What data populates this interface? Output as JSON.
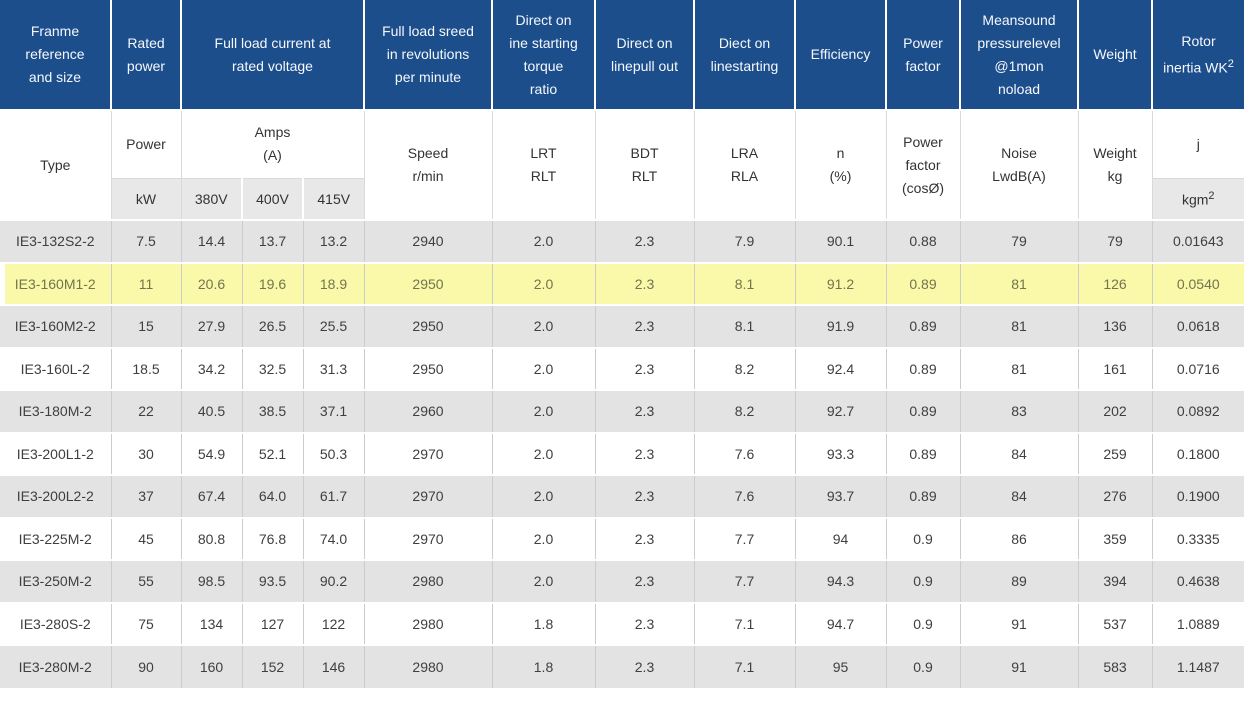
{
  "colors": {
    "header_bg": "#1d4e8c",
    "header_text": "#f5f8fc",
    "row_alt_bg": "#e3e3e3",
    "unit_cell_bg": "#e8e8e8",
    "highlight_bg": "#f9f9a9",
    "highlight_text": "#74744e",
    "body_text": "#3f3f3f",
    "grid_line": "#cccccc"
  },
  "top_header": {
    "frame": "Franme\nreference\nand size",
    "rated_power": "Rated\npower",
    "full_load_current": "Full load current at\nrated voltage",
    "full_load_speed": "Full load sreed\nin revolutions\nper minute",
    "dol_torque": "Direct on\nine starting\ntorque\nratio",
    "dol_pullout": "Direct on\nlinepull out",
    "dol_starting": "Diect on\nlinestarting",
    "efficiency": "Efficiency",
    "power_factor": "Power\nfactor",
    "noise": "Meansound\npressurelevel\n@1mon\nnoload",
    "weight": "Weight",
    "rotor_line1": "Rotor",
    "rotor_line2": "inertia WK",
    "rotor_sup": "2"
  },
  "sub_header": {
    "type": "Type",
    "power": "Power",
    "amps": "Amps\n(A)",
    "kw": "kW",
    "v380": "380V",
    "v400": "400V",
    "v415": "415V",
    "speed": "Speed\nr/min",
    "lrt": "LRT\nRLT",
    "bdt": "BDT\nRLT",
    "lra": "LRA\nRLA",
    "n": "n\n(%)",
    "pf": "Power\nfactor\n(cosØ)",
    "noise": "Noise\nLwdB(A)",
    "weight": "Weight\nkg",
    "j": "j",
    "kgm_text": "kgm",
    "kgm_sup": "2"
  },
  "rows": [
    {
      "type": "IE3-132S2-2",
      "kw": "7.5",
      "a380": "14.4",
      "a400": "13.7",
      "a415": "13.2",
      "speed": "2940",
      "lrt": "2.0",
      "bdt": "2.3",
      "lra": "7.9",
      "eff": "90.1",
      "pf": "0.88",
      "noise": "79",
      "weight": "79",
      "j": "0.01643",
      "highlighted": false
    },
    {
      "type": "IE3-160M1-2",
      "kw": "11",
      "a380": "20.6",
      "a400": "19.6",
      "a415": "18.9",
      "speed": "2950",
      "lrt": "2.0",
      "bdt": "2.3",
      "lra": "8.1",
      "eff": "91.2",
      "pf": "0.89",
      "noise": "81",
      "weight": "126",
      "j": "0.0540",
      "highlighted": true
    },
    {
      "type": "IE3-160M2-2",
      "kw": "15",
      "a380": "27.9",
      "a400": "26.5",
      "a415": "25.5",
      "speed": "2950",
      "lrt": "2.0",
      "bdt": "2.3",
      "lra": "8.1",
      "eff": "91.9",
      "pf": "0.89",
      "noise": "81",
      "weight": "136",
      "j": "0.0618",
      "highlighted": false
    },
    {
      "type": "IE3-160L-2",
      "kw": "18.5",
      "a380": "34.2",
      "a400": "32.5",
      "a415": "31.3",
      "speed": "2950",
      "lrt": "2.0",
      "bdt": "2.3",
      "lra": "8.2",
      "eff": "92.4",
      "pf": "0.89",
      "noise": "81",
      "weight": "161",
      "j": "0.0716",
      "highlighted": false
    },
    {
      "type": "IE3-180M-2",
      "kw": "22",
      "a380": "40.5",
      "a400": "38.5",
      "a415": "37.1",
      "speed": "2960",
      "lrt": "2.0",
      "bdt": "2.3",
      "lra": "8.2",
      "eff": "92.7",
      "pf": "0.89",
      "noise": "83",
      "weight": "202",
      "j": "0.0892",
      "highlighted": false
    },
    {
      "type": "IE3-200L1-2",
      "kw": "30",
      "a380": "54.9",
      "a400": "52.1",
      "a415": "50.3",
      "speed": "2970",
      "lrt": "2.0",
      "bdt": "2.3",
      "lra": "7.6",
      "eff": "93.3",
      "pf": "0.89",
      "noise": "84",
      "weight": "259",
      "j": "0.1800",
      "highlighted": false
    },
    {
      "type": "IE3-200L2-2",
      "kw": "37",
      "a380": "67.4",
      "a400": "64.0",
      "a415": "61.7",
      "speed": "2970",
      "lrt": "2.0",
      "bdt": "2.3",
      "lra": "7.6",
      "eff": "93.7",
      "pf": "0.89",
      "noise": "84",
      "weight": "276",
      "j": "0.1900",
      "highlighted": false
    },
    {
      "type": "IE3-225M-2",
      "kw": "45",
      "a380": "80.8",
      "a400": "76.8",
      "a415": "74.0",
      "speed": "2970",
      "lrt": "2.0",
      "bdt": "2.3",
      "lra": "7.7",
      "eff": "94",
      "pf": "0.9",
      "noise": "86",
      "weight": "359",
      "j": "0.3335",
      "highlighted": false
    },
    {
      "type": "IE3-250M-2",
      "kw": "55",
      "a380": "98.5",
      "a400": "93.5",
      "a415": "90.2",
      "speed": "2980",
      "lrt": "2.0",
      "bdt": "2.3",
      "lra": "7.7",
      "eff": "94.3",
      "pf": "0.9",
      "noise": "89",
      "weight": "394",
      "j": "0.4638",
      "highlighted": false
    },
    {
      "type": "IE3-280S-2",
      "kw": "75",
      "a380": "134",
      "a400": "127",
      "a415": "122",
      "speed": "2980",
      "lrt": "1.8",
      "bdt": "2.3",
      "lra": "7.1",
      "eff": "94.7",
      "pf": "0.9",
      "noise": "91",
      "weight": "537",
      "j": "1.0889",
      "highlighted": false
    },
    {
      "type": "IE3-280M-2",
      "kw": "90",
      "a380": "160",
      "a400": "152",
      "a415": "146",
      "speed": "2980",
      "lrt": "1.8",
      "bdt": "2.3",
      "lra": "7.1",
      "eff": "95",
      "pf": "0.9",
      "noise": "91",
      "weight": "583",
      "j": "1.1487",
      "highlighted": false
    }
  ]
}
